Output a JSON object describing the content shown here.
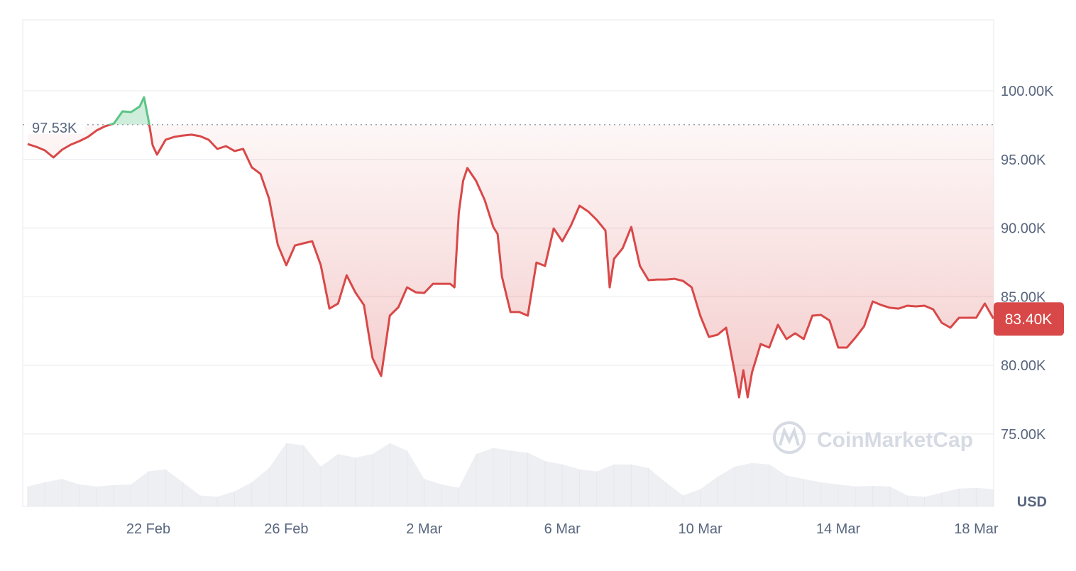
{
  "chart_data": {
    "type": "line",
    "xlabel": "",
    "ylabel": "USD",
    "ylim": [
      70.5,
      104.5
    ],
    "y_ticks": [
      "100.00K",
      "95.00K",
      "90.00K",
      "85.00K",
      "80.00K",
      "75.00K"
    ],
    "y_tick_values": [
      100,
      95,
      90,
      85,
      80,
      75
    ],
    "x_ticks": [
      "22 Feb",
      "26 Feb",
      "2 Mar",
      "6 Mar",
      "10 Mar",
      "14 Mar",
      "18 Mar"
    ],
    "grid": true,
    "reference_line": {
      "value": 97.53,
      "label": "97.53K",
      "style": "dotted"
    },
    "current_price": {
      "value": 83.4,
      "label": "83.40K"
    },
    "unit_label": "USD",
    "watermark": "CoinMarketCap",
    "colors": {
      "down": "#d94848",
      "up": "#5cc486",
      "volume": "#eeeff3",
      "grid": "#eff0f3",
      "axis_text": "#58667e"
    },
    "price_series": [
      [
        "18 Feb 12:00",
        96.12
      ],
      [
        "18 Feb 18:00",
        95.92
      ],
      [
        "19 Feb 00:00",
        95.66
      ],
      [
        "19 Feb 06:00",
        95.14
      ],
      [
        "19 Feb 12:00",
        95.71
      ],
      [
        "19 Feb 18:00",
        96.07
      ],
      [
        "20 Feb 00:00",
        96.33
      ],
      [
        "20 Feb 06:00",
        96.64
      ],
      [
        "20 Feb 12:00",
        97.11
      ],
      [
        "20 Feb 18:00",
        97.42
      ],
      [
        "21 Feb 00:00",
        97.62
      ],
      [
        "21 Feb 06:00",
        98.5
      ],
      [
        "21 Feb 12:00",
        98.45
      ],
      [
        "21 Feb 18:00",
        98.86
      ],
      [
        "21 Feb 21:00",
        99.53
      ],
      [
        "22 Feb 00:00",
        97.93
      ],
      [
        "22 Feb 03:00",
        96.02
      ],
      [
        "22 Feb 06:00",
        95.35
      ],
      [
        "22 Feb 12:00",
        96.43
      ],
      [
        "22 Feb 18:00",
        96.64
      ],
      [
        "23 Feb 00:00",
        96.74
      ],
      [
        "23 Feb 06:00",
        96.8
      ],
      [
        "23 Feb 12:00",
        96.69
      ],
      [
        "23 Feb 18:00",
        96.43
      ],
      [
        "24 Feb 00:00",
        95.76
      ],
      [
        "24 Feb 06:00",
        95.97
      ],
      [
        "24 Feb 12:00",
        95.61
      ],
      [
        "24 Feb 18:00",
        95.76
      ],
      [
        "25 Feb 00:00",
        94.42
      ],
      [
        "25 Feb 06:00",
        93.95
      ],
      [
        "25 Feb 12:00",
        92.14
      ],
      [
        "25 Feb 18:00",
        88.79
      ],
      [
        "26 Feb 00:00",
        87.29
      ],
      [
        "26 Feb 06:00",
        88.73
      ],
      [
        "26 Feb 12:00",
        88.89
      ],
      [
        "26 Feb 18:00",
        89.04
      ],
      [
        "27 Feb 00:00",
        87.29
      ],
      [
        "27 Feb 06:00",
        84.13
      ],
      [
        "27 Feb 12:00",
        84.5
      ],
      [
        "27 Feb 18:00",
        86.56
      ],
      [
        "28 Feb 00:00",
        85.32
      ],
      [
        "28 Feb 06:00",
        84.39
      ],
      [
        "28 Feb 12:00",
        80.52
      ],
      [
        "28 Feb 18:00",
        79.22
      ],
      [
        "1 Mar 00:00",
        83.62
      ],
      [
        "1 Mar 06:00",
        84.24
      ],
      [
        "1 Mar 12:00",
        85.68
      ],
      [
        "1 Mar 18:00",
        85.32
      ],
      [
        "2 Mar 00:00",
        85.27
      ],
      [
        "2 Mar 06:00",
        85.94
      ],
      [
        "2 Mar 12:00",
        85.94
      ],
      [
        "2 Mar 18:00",
        85.94
      ],
      [
        "2 Mar 21:00",
        85.68
      ],
      [
        "3 Mar 00:00",
        91.11
      ],
      [
        "3 Mar 03:00",
        93.44
      ],
      [
        "3 Mar 06:00",
        94.37
      ],
      [
        "3 Mar 12:00",
        93.44
      ],
      [
        "3 Mar 18:00",
        92.04
      ],
      [
        "4 Mar 00:00",
        90.08
      ],
      [
        "4 Mar 03:00",
        89.56
      ],
      [
        "4 Mar 06:00",
        86.46
      ],
      [
        "4 Mar 12:00",
        83.88
      ],
      [
        "4 Mar 18:00",
        83.88
      ],
      [
        "5 Mar 00:00",
        83.62
      ],
      [
        "5 Mar 06:00",
        87.49
      ],
      [
        "5 Mar 12:00",
        87.24
      ],
      [
        "5 Mar 18:00",
        89.97
      ],
      [
        "6 Mar 00:00",
        89.04
      ],
      [
        "6 Mar 06:00",
        90.18
      ],
      [
        "6 Mar 12:00",
        91.63
      ],
      [
        "6 Mar 18:00",
        91.21
      ],
      [
        "7 Mar 00:00",
        90.59
      ],
      [
        "7 Mar 06:00",
        89.82
      ],
      [
        "7 Mar 09:00",
        85.68
      ],
      [
        "7 Mar 12:00",
        87.75
      ],
      [
        "7 Mar 18:00",
        88.53
      ],
      [
        "8 Mar 00:00",
        90.08
      ],
      [
        "8 Mar 06:00",
        87.24
      ],
      [
        "8 Mar 12:00",
        86.2
      ],
      [
        "8 Mar 18:00",
        86.25
      ],
      [
        "9 Mar 00:00",
        86.25
      ],
      [
        "9 Mar 06:00",
        86.3
      ],
      [
        "9 Mar 12:00",
        86.15
      ],
      [
        "9 Mar 18:00",
        85.68
      ],
      [
        "10 Mar 00:00",
        83.62
      ],
      [
        "10 Mar 06:00",
        82.07
      ],
      [
        "10 Mar 12:00",
        82.22
      ],
      [
        "10 Mar 18:00",
        82.74
      ],
      [
        "11 Mar 00:00",
        79.48
      ],
      [
        "11 Mar 03:00",
        77.67
      ],
      [
        "11 Mar 06:00",
        79.64
      ],
      [
        "11 Mar 09:00",
        77.67
      ],
      [
        "11 Mar 12:00",
        79.48
      ],
      [
        "11 Mar 18:00",
        81.55
      ],
      [
        "12 Mar 00:00",
        81.29
      ],
      [
        "12 Mar 06:00",
        82.95
      ],
      [
        "12 Mar 12:00",
        81.91
      ],
      [
        "12 Mar 18:00",
        82.33
      ],
      [
        "13 Mar 00:00",
        81.91
      ],
      [
        "13 Mar 06:00",
        83.62
      ],
      [
        "13 Mar 12:00",
        83.67
      ],
      [
        "13 Mar 18:00",
        83.26
      ],
      [
        "14 Mar 00:00",
        81.29
      ],
      [
        "14 Mar 06:00",
        81.29
      ],
      [
        "14 Mar 12:00",
        82.02
      ],
      [
        "14 Mar 18:00",
        82.84
      ],
      [
        "15 Mar 00:00",
        84.65
      ],
      [
        "15 Mar 06:00",
        84.39
      ],
      [
        "15 Mar 12:00",
        84.19
      ],
      [
        "15 Mar 18:00",
        84.13
      ],
      [
        "16 Mar 00:00",
        84.34
      ],
      [
        "16 Mar 06:00",
        84.29
      ],
      [
        "16 Mar 12:00",
        84.34
      ],
      [
        "16 Mar 18:00",
        84.08
      ],
      [
        "17 Mar 00:00",
        83.1
      ],
      [
        "17 Mar 06:00",
        82.74
      ],
      [
        "17 Mar 12:00",
        83.46
      ],
      [
        "17 Mar 18:00",
        83.46
      ],
      [
        "18 Mar 00:00",
        83.46
      ],
      [
        "18 Mar 06:00",
        84.5
      ],
      [
        "18 Mar 12:00",
        83.4
      ]
    ],
    "volume_relative_percent": [
      [
        "18 Feb 12:00",
        29
      ],
      [
        "19 Feb 00:00",
        35
      ],
      [
        "19 Feb 12:00",
        40
      ],
      [
        "20 Feb 00:00",
        32
      ],
      [
        "20 Feb 12:00",
        29
      ],
      [
        "21 Feb 00:00",
        31
      ],
      [
        "21 Feb 12:00",
        32
      ],
      [
        "22 Feb 00:00",
        51
      ],
      [
        "22 Feb 12:00",
        54
      ],
      [
        "23 Feb 00:00",
        35
      ],
      [
        "23 Feb 12:00",
        16
      ],
      [
        "24 Feb 00:00",
        14
      ],
      [
        "24 Feb 12:00",
        22
      ],
      [
        "25 Feb 00:00",
        35
      ],
      [
        "25 Feb 12:00",
        56
      ],
      [
        "26 Feb 00:00",
        92
      ],
      [
        "26 Feb 12:00",
        89
      ],
      [
        "27 Feb 00:00",
        58
      ],
      [
        "27 Feb 12:00",
        76
      ],
      [
        "28 Feb 00:00",
        71
      ],
      [
        "28 Feb 12:00",
        76
      ],
      [
        "1 Mar 00:00",
        92
      ],
      [
        "1 Mar 12:00",
        81
      ],
      [
        "2 Mar 00:00",
        40
      ],
      [
        "2 Mar 12:00",
        32
      ],
      [
        "3 Mar 00:00",
        27
      ],
      [
        "3 Mar 12:00",
        76
      ],
      [
        "4 Mar 00:00",
        85
      ],
      [
        "4 Mar 12:00",
        81
      ],
      [
        "5 Mar 00:00",
        78
      ],
      [
        "5 Mar 12:00",
        66
      ],
      [
        "6 Mar 00:00",
        61
      ],
      [
        "6 Mar 12:00",
        54
      ],
      [
        "7 Mar 00:00",
        51
      ],
      [
        "7 Mar 12:00",
        61
      ],
      [
        "8 Mar 00:00",
        61
      ],
      [
        "8 Mar 12:00",
        56
      ],
      [
        "9 Mar 00:00",
        35
      ],
      [
        "9 Mar 12:00",
        16
      ],
      [
        "10 Mar 00:00",
        25
      ],
      [
        "10 Mar 12:00",
        43
      ],
      [
        "11 Mar 00:00",
        58
      ],
      [
        "11 Mar 12:00",
        63
      ],
      [
        "12 Mar 00:00",
        61
      ],
      [
        "12 Mar 12:00",
        45
      ],
      [
        "13 Mar 00:00",
        40
      ],
      [
        "13 Mar 12:00",
        35
      ],
      [
        "14 Mar 00:00",
        32
      ],
      [
        "14 Mar 12:00",
        29
      ],
      [
        "15 Mar 00:00",
        30
      ],
      [
        "15 Mar 12:00",
        29
      ],
      [
        "16 Mar 00:00",
        16
      ],
      [
        "16 Mar 12:00",
        14
      ],
      [
        "17 Mar 00:00",
        20
      ],
      [
        "17 Mar 12:00",
        26
      ],
      [
        "18 Mar 00:00",
        27
      ],
      [
        "18 Mar 12:00",
        25
      ]
    ]
  }
}
